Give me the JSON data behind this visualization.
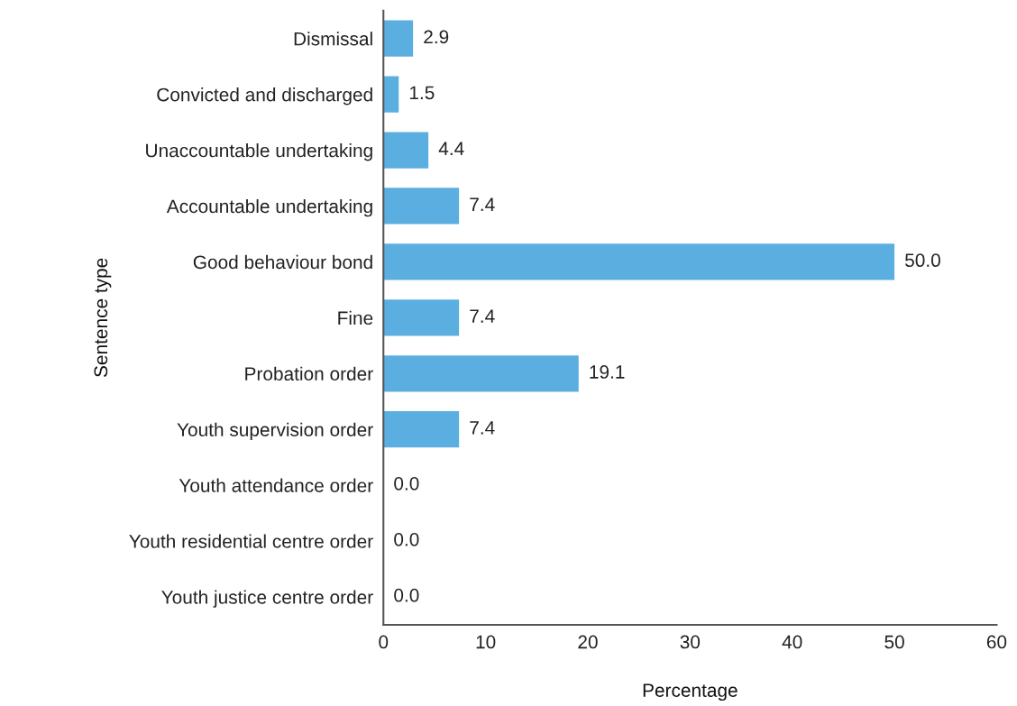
{
  "chart_data": {
    "type": "bar",
    "orientation": "horizontal",
    "xlabel": "Percentage",
    "ylabel": "Sentence type",
    "categories": [
      "Dismissal",
      "Convicted and discharged",
      "Unaccountable undertaking",
      "Accountable undertaking",
      "Good behaviour bond",
      "Fine",
      "Probation order",
      "Youth supervision order",
      "Youth attendance order",
      "Youth residential centre order",
      "Youth justice centre order"
    ],
    "values": [
      2.9,
      1.5,
      4.4,
      7.4,
      50.0,
      7.4,
      19.1,
      7.4,
      0.0,
      0.0,
      0.0
    ],
    "value_labels": [
      "2.9",
      "1.5",
      "4.4",
      "7.4",
      "50.0",
      "7.4",
      "19.1",
      "7.4",
      "0.0",
      "0.0",
      "0.0"
    ],
    "color": "#5baee0",
    "xlim": [
      0,
      60
    ],
    "xticks": [
      0,
      10,
      20,
      30,
      40,
      50,
      60
    ],
    "grid": false
  }
}
